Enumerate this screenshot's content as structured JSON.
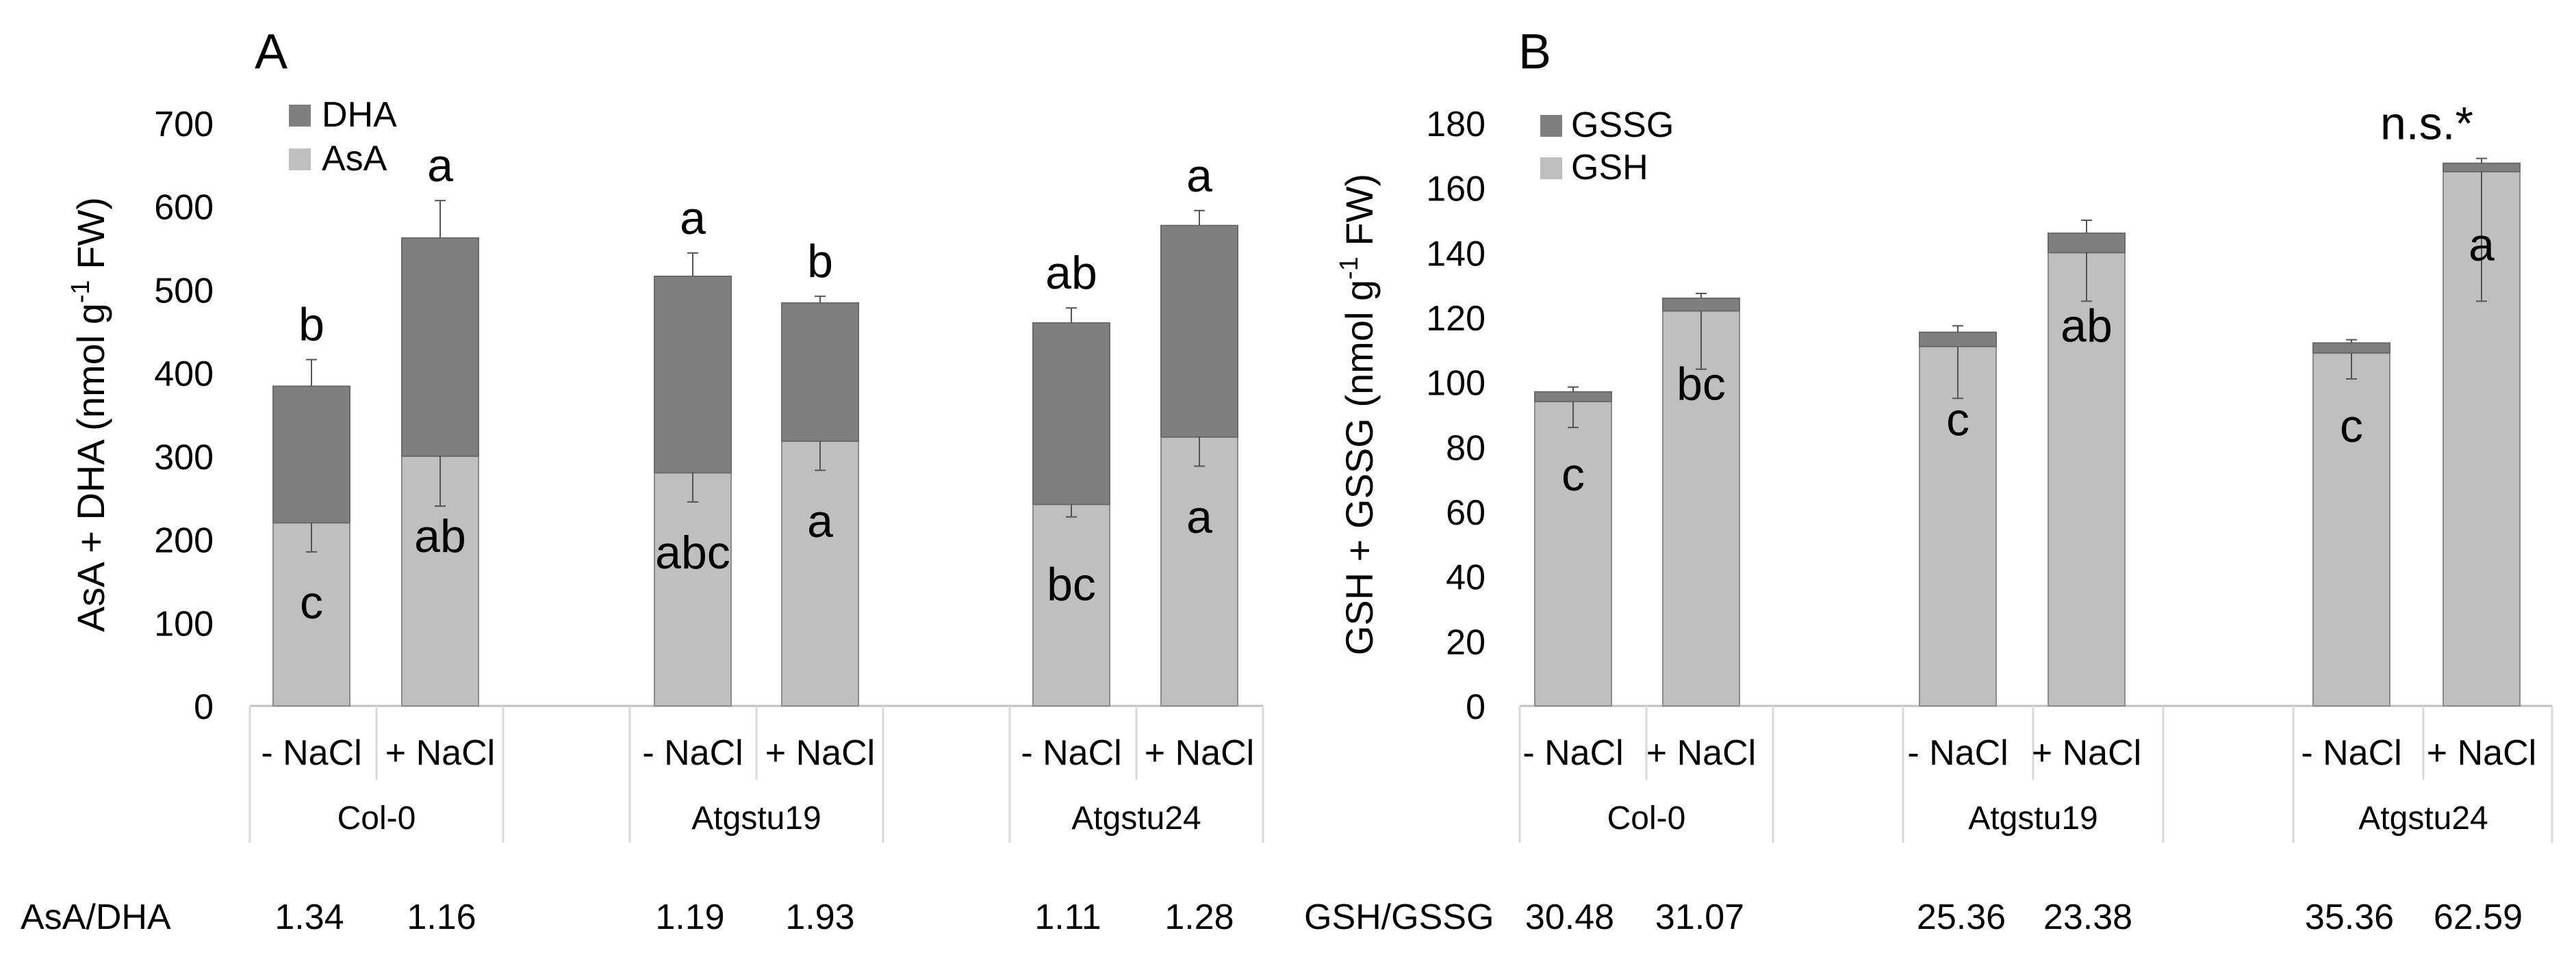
{
  "chart_data": [
    {
      "panel": "A",
      "type": "bar",
      "stacked": true,
      "ylabel_main": "AsA + DHA (nmol g",
      "ylabel_sup": "-1",
      "ylabel_end": " FW)",
      "ylim": [
        0,
        700
      ],
      "yticks": [
        0,
        100,
        200,
        300,
        400,
        500,
        600,
        700
      ],
      "legend": [
        {
          "name": "DHA",
          "color": "#7f7f7f"
        },
        {
          "name": "AsA",
          "color": "#bfbfbf"
        }
      ],
      "genotypes": [
        "Col-0",
        "Atgstu19",
        "Atgstu24"
      ],
      "treatments": [
        "- NaCl",
        "+ NaCl",
        "- NaCl",
        "+ NaCl",
        "- NaCl",
        "+ NaCl"
      ],
      "bottom_series": {
        "name": "AsA",
        "values": [
          220,
          300,
          280,
          318,
          242,
          323
        ],
        "errors": [
          35,
          60,
          35,
          35,
          15,
          35
        ],
        "labels": [
          "c",
          "ab",
          "abc",
          "a",
          "bc",
          "a"
        ]
      },
      "top_series": {
        "name": "DHA",
        "values": [
          164,
          262,
          236,
          166,
          218,
          254
        ],
        "errors": [
          32,
          45,
          28,
          8,
          18,
          18
        ],
        "labels": [
          "b",
          "a",
          "a",
          "b",
          "ab",
          "a"
        ]
      },
      "ratio_label": "AsA/DHA",
      "ratios": [
        "1.34",
        "1.16",
        "1.19",
        "1.93",
        "1.11",
        "1.28"
      ]
    },
    {
      "panel": "B",
      "type": "bar",
      "stacked": true,
      "ylabel_main": "GSH + GSSG (nmol g",
      "ylabel_sup": "-1",
      "ylabel_end": " FW)",
      "ylim": [
        0,
        180
      ],
      "yticks": [
        0,
        20,
        40,
        60,
        80,
        100,
        120,
        140,
        160,
        180
      ],
      "legend": [
        {
          "name": "GSSG",
          "color": "#7f7f7f"
        },
        {
          "name": "GSH",
          "color": "#bfbfbf"
        }
      ],
      "genotypes": [
        "Col-0",
        "Atgstu19",
        "Atgstu24"
      ],
      "treatments": [
        "- NaCl",
        "+ NaCl",
        "- NaCl",
        "+ NaCl",
        "- NaCl",
        "+ NaCl"
      ],
      "bottom_series": {
        "name": "GSH",
        "values": [
          94,
          122,
          111,
          140,
          109,
          165
        ],
        "errors": [
          8,
          18,
          16,
          15,
          8,
          40
        ],
        "labels": [
          "c",
          "bc",
          "c",
          "ab",
          "c",
          "a"
        ]
      },
      "top_series": {
        "name": "GSSG",
        "values": [
          3,
          3.9,
          4.4,
          6,
          3.1,
          2.6
        ],
        "errors": [
          1.5,
          1.5,
          2,
          4,
          1,
          1.5
        ],
        "labels": [
          "",
          "",
          "",
          "",
          "",
          "n.s.*"
        ]
      },
      "ratio_label": "GSH/GSSG",
      "ratios": [
        "30.48",
        "31.07",
        "25.36",
        "23.38",
        "35.36",
        "62.59"
      ]
    }
  ]
}
